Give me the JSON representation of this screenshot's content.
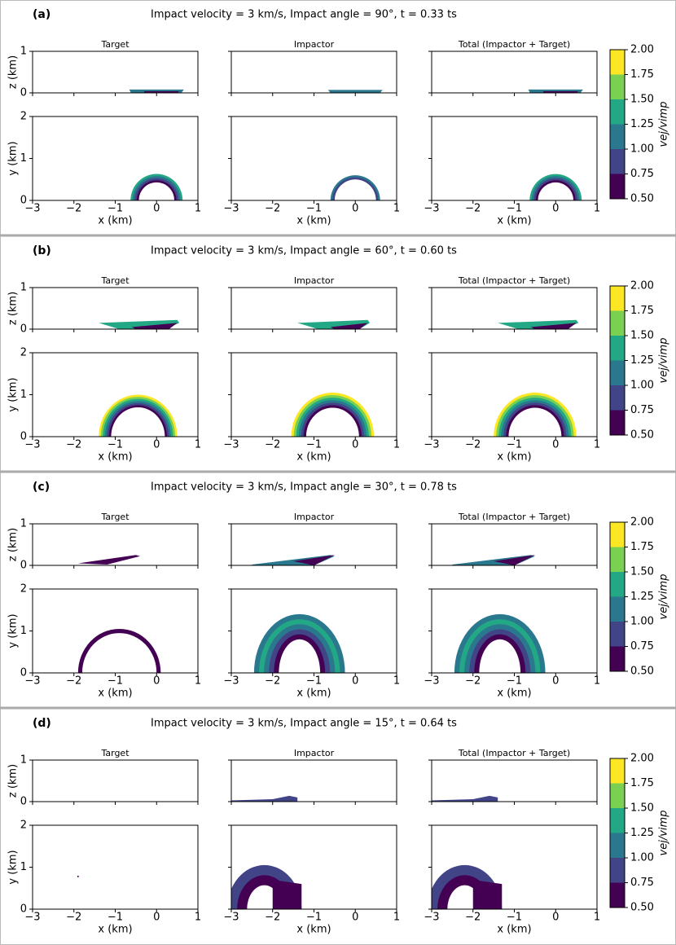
{
  "chart_data": {
    "type": "filled-contour",
    "panels": [
      {
        "label": "(a)",
        "title": "Impact velocity = 3 km/s, Impact angle =  90°, t =   0.33 ts"
      },
      {
        "label": "(b)",
        "title": "Impact velocity = 3 km/s, Impact angle =  60°, t =   0.60 ts"
      },
      {
        "label": "(c)",
        "title": "Impact velocity = 3 km/s, Impact angle =  30°, t =   0.78 ts"
      },
      {
        "label": "(d)",
        "title": "Impact velocity = 3 km/s, Impact angle =  15°, t =   0.64 ts"
      }
    ],
    "columns": [
      "Target",
      "Impactor",
      "Total (Impactor + Target)"
    ],
    "xlabel": "x (km)",
    "zlabel": "z (km)",
    "ylabel": "y (km)",
    "xlim": [
      -3,
      1
    ],
    "xticks": [
      {
        "value": -3,
        "label": "−3"
      },
      {
        "value": -2,
        "label": "−2"
      },
      {
        "value": -1,
        "label": "−1"
      },
      0,
      1
    ],
    "zlim": [
      0,
      1
    ],
    "zticks": [
      0,
      1
    ],
    "ylim": [
      0,
      2
    ],
    "yticks": [
      0,
      1,
      2
    ],
    "colorbar": {
      "label": "vej/vimp",
      "ticks": [
        {
          "value": 0.5,
          "label": "0.50"
        },
        {
          "value": 0.75,
          "label": "0.75"
        },
        {
          "value": 1.0,
          "label": "1.00"
        },
        {
          "value": 1.25,
          "label": "1.25"
        },
        {
          "value": 1.5,
          "label": "1.50"
        },
        {
          "value": 1.75,
          "label": "1.75"
        },
        {
          "value": 2.0,
          "label": "2.00"
        }
      ],
      "colors": [
        "#440154",
        "#414487",
        "#2a788e",
        "#22a884",
        "#7ad151",
        "#fde725"
      ]
    }
  }
}
